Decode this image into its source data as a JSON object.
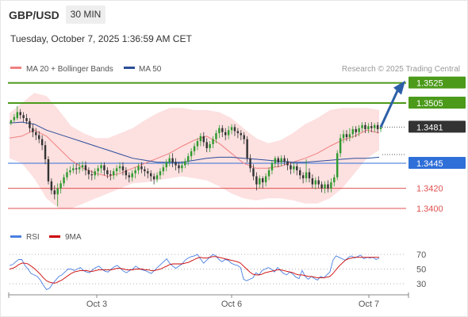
{
  "header": {
    "symbol": "GBP/USD",
    "timeframe": "30 MIN",
    "timestamp": "Tuesday, October 7, 2025 1:36:59 AM CET"
  },
  "legend": {
    "ma20_label": "MA 20 + Bollinger Bands",
    "ma50_label": "MA 50",
    "credit": "Research © 2025 Trading Central",
    "ma20_color": "#f08080",
    "ma50_color": "#2b4d9a",
    "band_color": "#fde0e0"
  },
  "rsi_legend": {
    "rsi_label": "RSI",
    "ma_label": "9MA",
    "rsi_color": "#4a7fe0",
    "ma_color": "#cc0000"
  },
  "colors": {
    "target": "#4b9a1a",
    "pivot": "#2f6fd8",
    "support": "#e05050",
    "current": "#333333",
    "up_candle": "#2f9a2f",
    "down_candle": "#333333"
  },
  "chart_data": [
    {
      "type": "candlestick",
      "x_ticks": [
        "Oct 3",
        "Oct 6",
        "Oct 7"
      ],
      "ylim": [
        1.3385,
        1.3535
      ],
      "current_price": 1.3481,
      "levels": [
        {
          "label": "1.3525",
          "value": 1.3525,
          "kind": "target"
        },
        {
          "label": "1.3505",
          "value": 1.3505,
          "kind": "target"
        },
        {
          "label": "1.3481",
          "value": 1.3481,
          "kind": "current"
        },
        {
          "label": "1.3445",
          "value": 1.3445,
          "kind": "pivot"
        },
        {
          "label": "1.3420",
          "value": 1.342,
          "kind": "support"
        },
        {
          "label": "1.3400",
          "value": 1.34,
          "kind": "support"
        }
      ],
      "series": [
        {
          "name": "MA 20",
          "values": [
            1.347,
            1.3472,
            1.3478,
            1.3472,
            1.346,
            1.3448,
            1.344,
            1.3435,
            1.3432,
            1.3435,
            1.344,
            1.3445,
            1.345,
            1.3455,
            1.3462,
            1.3468,
            1.3472,
            1.3465,
            1.3455,
            1.3445,
            1.344,
            1.344,
            1.3442,
            1.3446,
            1.345,
            1.3455,
            1.3462,
            1.3468,
            1.3472,
            1.3478,
            1.3475
          ]
        },
        {
          "name": "MA 50",
          "values": [
            1.3485,
            1.3486,
            1.3484,
            1.3478,
            1.3474,
            1.347,
            1.3466,
            1.3462,
            1.3458,
            1.3454,
            1.345,
            1.3448,
            1.3446,
            1.3446,
            1.3446,
            1.3448,
            1.345,
            1.3451,
            1.3451,
            1.345,
            1.3449,
            1.3448,
            1.3447,
            1.3446,
            1.3446,
            1.3447,
            1.3448,
            1.3449,
            1.345,
            1.345,
            1.3451
          ]
        }
      ],
      "bollinger": {
        "upper": [
          1.3495,
          1.3505,
          1.3515,
          1.3512,
          1.3498,
          1.3482,
          1.3475,
          1.347,
          1.347,
          1.3475,
          1.348,
          1.3488,
          1.3495,
          1.35,
          1.35,
          1.3498,
          1.3498,
          1.3496,
          1.349,
          1.348,
          1.347,
          1.3465,
          1.3468,
          1.3475,
          1.3484,
          1.349,
          1.3498,
          1.35,
          1.35,
          1.35,
          1.3498
        ],
        "lower": [
          1.345,
          1.3445,
          1.343,
          1.341,
          1.34,
          1.34,
          1.3405,
          1.341,
          1.3415,
          1.342,
          1.3425,
          1.3426,
          1.3428,
          1.343,
          1.3432,
          1.343,
          1.3428,
          1.3422,
          1.3415,
          1.341,
          1.3408,
          1.341,
          1.341,
          1.3408,
          1.3405,
          1.3405,
          1.341,
          1.342,
          1.3435,
          1.345,
          1.3458
        ]
      },
      "candles": [
        [
          1.3485,
          1.3488,
          1.3488,
          1.3483
        ],
        [
          1.3488,
          1.3491,
          1.3494,
          1.3486
        ],
        [
          1.349,
          1.3496,
          1.3502,
          1.3488
        ],
        [
          1.3496,
          1.3493,
          1.3499,
          1.3489
        ],
        [
          1.3493,
          1.349,
          1.3496,
          1.3486
        ],
        [
          1.349,
          1.3487,
          1.3494,
          1.3484
        ],
        [
          1.3487,
          1.348,
          1.349,
          1.3476
        ],
        [
          1.348,
          1.3476,
          1.3484,
          1.3471
        ],
        [
          1.3476,
          1.3473,
          1.348,
          1.3468
        ],
        [
          1.3473,
          1.3469,
          1.3477,
          1.3465
        ],
        [
          1.3469,
          1.3463,
          1.3473,
          1.3458
        ],
        [
          1.3463,
          1.3449,
          1.3467,
          1.3444
        ],
        [
          1.3449,
          1.3427,
          1.3452,
          1.3424
        ],
        [
          1.3427,
          1.3418,
          1.343,
          1.3414
        ],
        [
          1.3418,
          1.3414,
          1.3423,
          1.3409
        ],
        [
          1.3414,
          1.342,
          1.3425,
          1.3402
        ],
        [
          1.342,
          1.3425,
          1.3428,
          1.3415
        ],
        [
          1.3425,
          1.3431,
          1.3434,
          1.3422
        ],
        [
          1.3431,
          1.3436,
          1.344,
          1.3428
        ],
        [
          1.3436,
          1.3438,
          1.3442,
          1.3433
        ],
        [
          1.3438,
          1.344,
          1.3444,
          1.3435
        ],
        [
          1.344,
          1.3439,
          1.3445,
          1.3434
        ],
        [
          1.3439,
          1.3441,
          1.3446,
          1.3435
        ],
        [
          1.3441,
          1.3443,
          1.3447,
          1.3437
        ],
        [
          1.3443,
          1.3438,
          1.3447,
          1.3433
        ],
        [
          1.3438,
          1.3434,
          1.3441,
          1.3429
        ],
        [
          1.3434,
          1.3433,
          1.3438,
          1.3428
        ],
        [
          1.3433,
          1.3437,
          1.344,
          1.3429
        ],
        [
          1.3437,
          1.344,
          1.3443,
          1.3432
        ],
        [
          1.344,
          1.3443,
          1.3446,
          1.3435
        ],
        [
          1.3443,
          1.3438,
          1.3446,
          1.3433
        ],
        [
          1.3438,
          1.3434,
          1.3441,
          1.343
        ],
        [
          1.3434,
          1.3433,
          1.3438,
          1.3428
        ],
        [
          1.3433,
          1.3437,
          1.344,
          1.3429
        ],
        [
          1.3437,
          1.344,
          1.3443,
          1.3432
        ],
        [
          1.344,
          1.3442,
          1.3446,
          1.3436
        ],
        [
          1.3442,
          1.3438,
          1.3446,
          1.3433
        ],
        [
          1.3438,
          1.3433,
          1.3441,
          1.3429
        ],
        [
          1.3433,
          1.3431,
          1.3436,
          1.3426
        ],
        [
          1.3431,
          1.3435,
          1.3438,
          1.3427
        ],
        [
          1.3435,
          1.3438,
          1.3441,
          1.343
        ],
        [
          1.3438,
          1.3442,
          1.3445,
          1.3434
        ],
        [
          1.3442,
          1.3439,
          1.3446,
          1.3435
        ],
        [
          1.3439,
          1.3437,
          1.3442,
          1.3432
        ],
        [
          1.3437,
          1.3435,
          1.344,
          1.343
        ],
        [
          1.3435,
          1.3432,
          1.3438,
          1.3427
        ],
        [
          1.3432,
          1.3429,
          1.3435,
          1.3424
        ],
        [
          1.3429,
          1.3433,
          1.3436,
          1.3426
        ],
        [
          1.3433,
          1.3437,
          1.344,
          1.3429
        ],
        [
          1.3437,
          1.3441,
          1.3444,
          1.3433
        ],
        [
          1.3441,
          1.3446,
          1.3449,
          1.3437
        ],
        [
          1.3446,
          1.345,
          1.3454,
          1.3442
        ],
        [
          1.345,
          1.3446,
          1.3455,
          1.3441
        ],
        [
          1.3446,
          1.3443,
          1.345,
          1.3438
        ],
        [
          1.3443,
          1.344,
          1.3446,
          1.3435
        ],
        [
          1.344,
          1.3443,
          1.3447,
          1.3436
        ],
        [
          1.3443,
          1.3447,
          1.345,
          1.344
        ],
        [
          1.3447,
          1.3452,
          1.3455,
          1.3443
        ],
        [
          1.3452,
          1.3457,
          1.346,
          1.3448
        ],
        [
          1.3457,
          1.3462,
          1.3465,
          1.3453
        ],
        [
          1.3462,
          1.3467,
          1.347,
          1.3458
        ],
        [
          1.3467,
          1.3472,
          1.3475,
          1.3462
        ],
        [
          1.3472,
          1.3466,
          1.3476,
          1.3462
        ],
        [
          1.3466,
          1.346,
          1.347,
          1.3456
        ],
        [
          1.346,
          1.3464,
          1.3467,
          1.3456
        ],
        [
          1.3464,
          1.3469,
          1.3472,
          1.346
        ],
        [
          1.3469,
          1.3475,
          1.3478,
          1.3465
        ],
        [
          1.3475,
          1.348,
          1.3483,
          1.347
        ],
        [
          1.348,
          1.3476,
          1.3483,
          1.3471
        ],
        [
          1.3476,
          1.3473,
          1.348,
          1.3468
        ],
        [
          1.3473,
          1.3478,
          1.3482,
          1.3469
        ],
        [
          1.3478,
          1.3481,
          1.3484,
          1.3474
        ],
        [
          1.3481,
          1.3477,
          1.3484,
          1.3472
        ],
        [
          1.3477,
          1.3475,
          1.348,
          1.347
        ],
        [
          1.3475,
          1.3473,
          1.3478,
          1.3468
        ],
        [
          1.3473,
          1.3469,
          1.3476,
          1.3464
        ],
        [
          1.3469,
          1.345,
          1.3472,
          1.3446
        ],
        [
          1.345,
          1.344,
          1.3454,
          1.3436
        ],
        [
          1.344,
          1.3432,
          1.3444,
          1.3428
        ],
        [
          1.3432,
          1.3424,
          1.3436,
          1.3418
        ],
        [
          1.3424,
          1.343,
          1.3433,
          1.342
        ],
        [
          1.343,
          1.3426,
          1.3432,
          1.342
        ],
        [
          1.3426,
          1.3432,
          1.3435,
          1.3422
        ],
        [
          1.3432,
          1.3438,
          1.3441,
          1.3428
        ],
        [
          1.3438,
          1.3445,
          1.3448,
          1.3434
        ],
        [
          1.3445,
          1.345,
          1.3452,
          1.3441
        ],
        [
          1.345,
          1.3446,
          1.3452,
          1.3441
        ],
        [
          1.3446,
          1.345,
          1.3453,
          1.3442
        ],
        [
          1.345,
          1.3447,
          1.3453,
          1.3443
        ],
        [
          1.3447,
          1.3443,
          1.345,
          1.3438
        ],
        [
          1.3443,
          1.3439,
          1.3446,
          1.3434
        ],
        [
          1.3439,
          1.3442,
          1.3446,
          1.3435
        ],
        [
          1.3442,
          1.3438,
          1.3445,
          1.3433
        ],
        [
          1.3438,
          1.3433,
          1.3441,
          1.3429
        ],
        [
          1.3433,
          1.343,
          1.3436,
          1.3425
        ],
        [
          1.343,
          1.3436,
          1.3449,
          1.3426
        ],
        [
          1.3436,
          1.343,
          1.344,
          1.3426
        ],
        [
          1.343,
          1.3424,
          1.3434,
          1.342
        ],
        [
          1.3424,
          1.3428,
          1.3431,
          1.3419
        ],
        [
          1.3428,
          1.3424,
          1.3432,
          1.342
        ],
        [
          1.3424,
          1.342,
          1.3427,
          1.3416
        ],
        [
          1.342,
          1.3424,
          1.3427,
          1.3415
        ],
        [
          1.3424,
          1.342,
          1.3428,
          1.3416
        ],
        [
          1.342,
          1.3426,
          1.343,
          1.3416
        ],
        [
          1.3426,
          1.3431,
          1.3434,
          1.3422
        ],
        [
          1.3431,
          1.3455,
          1.3458,
          1.3428
        ],
        [
          1.3455,
          1.347,
          1.3474,
          1.3451
        ],
        [
          1.347,
          1.3474,
          1.3478,
          1.3465
        ],
        [
          1.3474,
          1.3471,
          1.3478,
          1.3467
        ],
        [
          1.3471,
          1.3474,
          1.348,
          1.3467
        ],
        [
          1.3474,
          1.3479,
          1.3482,
          1.347
        ],
        [
          1.3479,
          1.3476,
          1.3482,
          1.3471
        ],
        [
          1.3476,
          1.348,
          1.3483,
          1.3472
        ],
        [
          1.348,
          1.3483,
          1.3486,
          1.3476
        ],
        [
          1.3483,
          1.3479,
          1.3486,
          1.3475
        ],
        [
          1.3479,
          1.3482,
          1.3485,
          1.3475
        ],
        [
          1.3482,
          1.348,
          1.3486,
          1.3476
        ],
        [
          1.348,
          1.3483,
          1.3485,
          1.3476
        ],
        [
          1.3483,
          1.3479,
          1.3486,
          1.3475
        ],
        [
          1.3479,
          1.3481,
          1.3484,
          1.3476
        ]
      ],
      "forecast": {
        "from": 1.3481,
        "to": 1.3525
      }
    },
    {
      "type": "line",
      "title": "RSI",
      "y_ticks": [
        70,
        50,
        30
      ],
      "ylim": [
        10,
        85
      ],
      "series": [
        {
          "name": "RSI",
          "values": [
            55,
            56,
            60,
            63,
            63,
            55,
            50,
            44,
            42,
            40,
            35,
            28,
            22,
            24,
            30,
            35,
            40,
            42,
            46,
            50,
            50,
            48,
            50,
            52,
            48,
            46,
            45,
            49,
            52,
            54,
            50,
            47,
            46,
            50,
            53,
            55,
            51,
            47,
            45,
            48,
            50,
            54,
            51,
            49,
            48,
            46,
            44,
            48,
            52,
            56,
            60,
            64,
            58,
            54,
            51,
            54,
            57,
            62,
            65,
            67,
            68,
            70,
            64,
            58,
            62,
            66,
            70,
            68,
            63,
            60,
            63,
            62,
            58,
            56,
            55,
            52,
            36,
            34,
            36,
            38,
            45,
            42,
            48,
            50,
            52,
            50,
            46,
            52,
            48,
            44,
            42,
            46,
            43,
            39,
            37,
            48,
            40,
            36,
            40,
            37,
            35,
            40,
            38,
            42,
            46,
            62,
            68,
            66,
            64,
            62,
            66,
            68,
            65,
            67,
            69,
            64,
            66,
            65,
            66,
            63,
            65
          ]
        },
        {
          "name": "9MA",
          "values": [
            50,
            51,
            53,
            56,
            58,
            58,
            57,
            54,
            51,
            47,
            43,
            38,
            34,
            32,
            31,
            31,
            33,
            35,
            38,
            41,
            44,
            46,
            47,
            48,
            48,
            48,
            47,
            47,
            48,
            49,
            49,
            49,
            49,
            49,
            50,
            51,
            51,
            50,
            49,
            49,
            49,
            50,
            50,
            50,
            49,
            49,
            48,
            48,
            49,
            50,
            52,
            54,
            56,
            57,
            57,
            57,
            57,
            58,
            59,
            61,
            63,
            65,
            66,
            65,
            65,
            66,
            67,
            67,
            66,
            65,
            64,
            63,
            62,
            61,
            60,
            58,
            54,
            50,
            46,
            43,
            42,
            42,
            43,
            45,
            46,
            47,
            48,
            49,
            49,
            48,
            47,
            46,
            45,
            43,
            42,
            42,
            41,
            40,
            40,
            39,
            38,
            38,
            38,
            39,
            40,
            44,
            49,
            54,
            58,
            62,
            64,
            65,
            66,
            66,
            66,
            66,
            66,
            66,
            66,
            66,
            66
          ]
        }
      ],
      "x_ticks": [
        "Oct 3",
        "Oct 6",
        "Oct 7"
      ]
    }
  ]
}
